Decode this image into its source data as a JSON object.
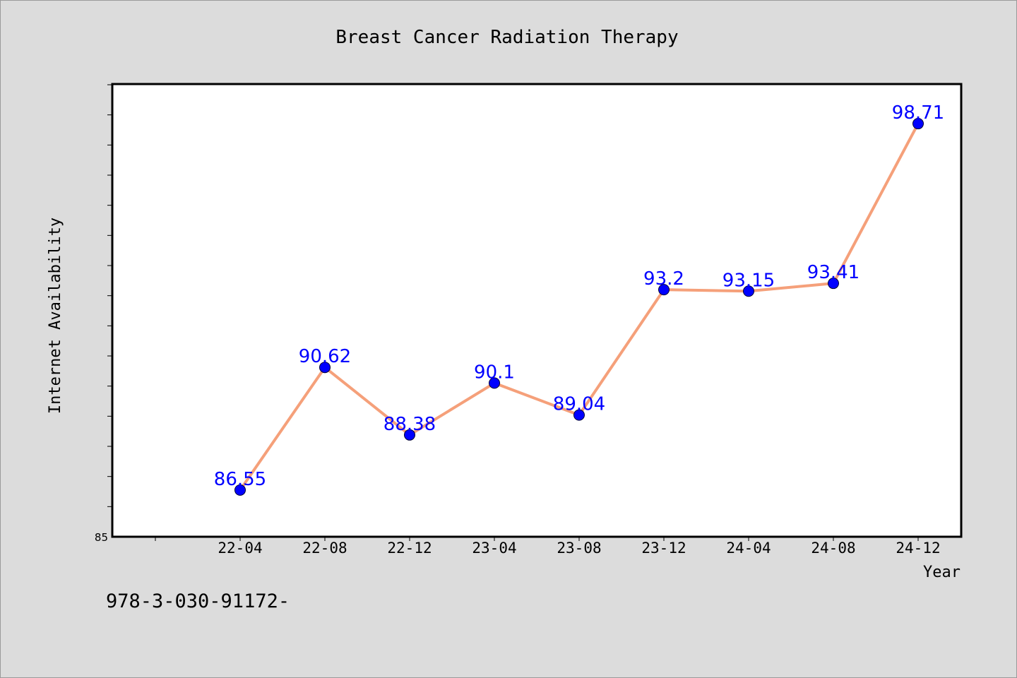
{
  "chart_data": {
    "type": "line",
    "title": "Breast Cancer Radiation Therapy",
    "xlabel": "Year",
    "ylabel": "Internet Availability",
    "categories": [
      "22-04",
      "22-08",
      "22-12",
      "23-04",
      "23-08",
      "23-12",
      "24-04",
      "24-08",
      "24-12"
    ],
    "series": [
      {
        "values": [
          86.55,
          90.62,
          88.38,
          90.1,
          89.04,
          93.2,
          93.15,
          93.41,
          98.71
        ]
      }
    ],
    "data_labels": [
      "86.55",
      "90.62",
      "88.38",
      "90.1",
      "89.04",
      "93.2",
      "93.15",
      "93.41",
      "98.71"
    ],
    "y_tick_labels": [
      "85"
    ],
    "ylim": [
      85,
      100
    ],
    "y_minor_step": 1,
    "grid": false,
    "line_color": "#f5a07a",
    "marker_color": "#0000ff",
    "label_color": "#0000ff"
  },
  "footer": {
    "text": "978-3-030-91172-"
  }
}
